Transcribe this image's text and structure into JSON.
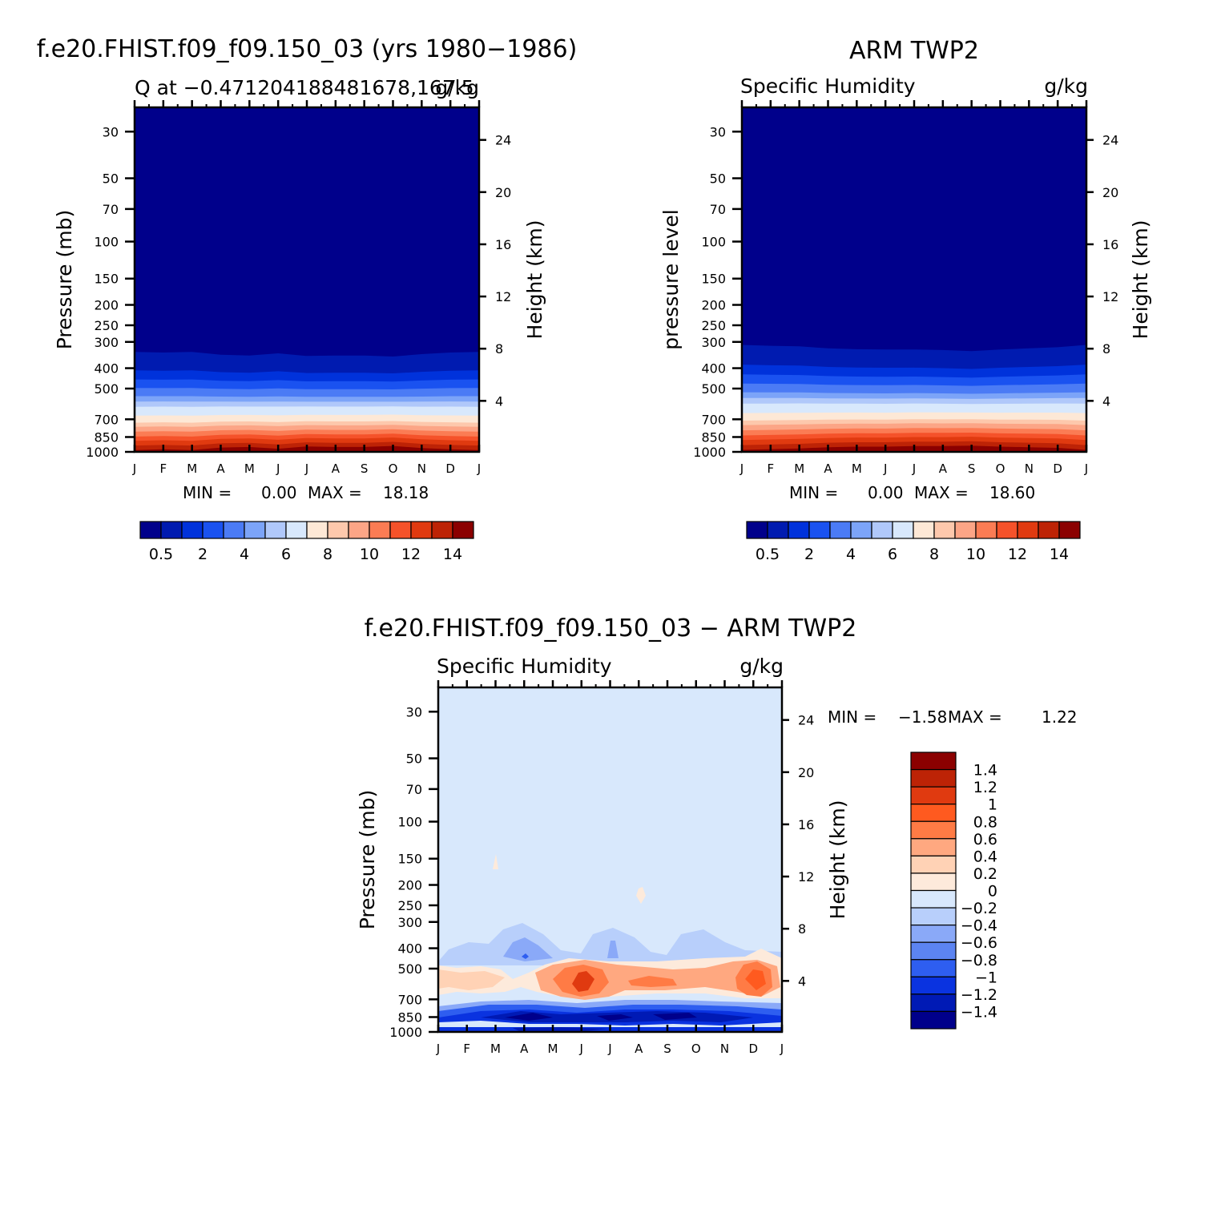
{
  "chart_data": [
    {
      "type": "heatmap",
      "panel": "model",
      "main_title": "f.e20.FHIST.f09_f09.150_03 (yrs 1980−1986)",
      "left_subtitle": "Q at −0.471204188481678,167.5",
      "right_subtitle": "g/kg",
      "ylabel": "Pressure (mb)",
      "right_ylabel": "Height (km)",
      "x_tick_labels": [
        "J",
        "F",
        "M",
        "A",
        "M",
        "J",
        "J",
        "A",
        "S",
        "O",
        "N",
        "D",
        "J"
      ],
      "y_tick_labels": [
        "30",
        "50",
        "70",
        "100",
        "150",
        "200",
        "250",
        "300",
        "400",
        "500",
        "700",
        "850",
        "1000"
      ],
      "y_tick_values": [
        30,
        50,
        70,
        100,
        150,
        200,
        250,
        300,
        400,
        500,
        700,
        850,
        1000
      ],
      "right_tick_labels": [
        "4",
        "8",
        "12",
        "16",
        "20",
        "24"
      ],
      "right_tick_values": [
        4,
        8,
        12,
        16,
        20,
        24
      ],
      "ylim": [
        1000,
        23
      ],
      "y_scale": "log",
      "min_label": "MIN =",
      "min_value": "0.00",
      "max_label": "MAX =",
      "max_value": "18.18",
      "colorbar": {
        "orientation": "horizontal",
        "labels": [
          "0.5",
          "2",
          "4",
          "6",
          "8",
          "10",
          "12",
          "14"
        ]
      },
      "months": [
        "J",
        "F",
        "M",
        "A",
        "M",
        "J",
        "J",
        "A",
        "S",
        "O",
        "N",
        "D",
        "J"
      ],
      "level_top_pressure": [
        335,
        337,
        335,
        345,
        348,
        340,
        350,
        348,
        348,
        352,
        343,
        337,
        335
      ],
      "level_shift_factor": [
        1.0,
        1.01,
        1.0,
        1.04,
        1.05,
        1.02,
        1.06,
        1.05,
        1.05,
        1.07,
        1.03,
        1.01,
        1.0
      ]
    },
    {
      "type": "heatmap",
      "panel": "observations",
      "main_title": "ARM TWP2",
      "left_subtitle": "Specific Humidity",
      "right_subtitle": "g/kg",
      "ylabel": "pressure level",
      "right_ylabel": "Height (km)",
      "x_tick_labels": [
        "J",
        "F",
        "M",
        "A",
        "M",
        "J",
        "J",
        "A",
        "S",
        "O",
        "N",
        "D",
        "J"
      ],
      "y_tick_labels": [
        "30",
        "50",
        "70",
        "100",
        "150",
        "200",
        "250",
        "300",
        "400",
        "500",
        "700",
        "850",
        "1000"
      ],
      "y_tick_values": [
        30,
        50,
        70,
        100,
        150,
        200,
        250,
        300,
        400,
        500,
        700,
        850,
        1000
      ],
      "right_tick_labels": [
        "4",
        "8",
        "12",
        "16",
        "20",
        "24"
      ],
      "right_tick_values": [
        4,
        8,
        12,
        16,
        20,
        24
      ],
      "ylim": [
        1000,
        23
      ],
      "y_scale": "log",
      "min_label": "MIN =",
      "min_value": "0.00",
      "max_label": "MAX =",
      "max_value": "18.60",
      "colorbar": {
        "orientation": "horizontal",
        "labels": [
          "0.5",
          "2",
          "4",
          "6",
          "8",
          "10",
          "12",
          "14"
        ]
      },
      "months": [
        "J",
        "F",
        "M",
        "A",
        "M",
        "J",
        "J",
        "A",
        "S",
        "O",
        "N",
        "D",
        "J"
      ],
      "level_top_pressure": [
        310,
        313,
        315,
        322,
        325,
        326,
        326,
        328,
        332,
        326,
        322,
        318,
        310
      ],
      "level_shift_factor": [
        1.0,
        1.01,
        1.02,
        1.04,
        1.05,
        1.05,
        1.06,
        1.06,
        1.07,
        1.05,
        1.04,
        1.03,
        1.0
      ]
    },
    {
      "type": "heatmap",
      "panel": "difference",
      "main_title": "f.e20.FHIST.f09_f09.150_03 − ARM TWP2",
      "left_subtitle": "Specific Humidity",
      "right_subtitle": "g/kg",
      "ylabel": "Pressure (mb)",
      "right_ylabel": "Height (km)",
      "x_tick_labels": [
        "J",
        "F",
        "M",
        "A",
        "M",
        "J",
        "J",
        "A",
        "S",
        "O",
        "N",
        "D",
        "J"
      ],
      "y_tick_labels": [
        "30",
        "50",
        "70",
        "100",
        "150",
        "200",
        "250",
        "300",
        "400",
        "500",
        "700",
        "850",
        "1000"
      ],
      "y_tick_values": [
        30,
        50,
        70,
        100,
        150,
        200,
        250,
        300,
        400,
        500,
        700,
        850,
        1000
      ],
      "right_tick_labels": [
        "4",
        "8",
        "12",
        "16",
        "20",
        "24"
      ],
      "right_tick_values": [
        4,
        8,
        12,
        16,
        20,
        24
      ],
      "ylim": [
        1000,
        23
      ],
      "y_scale": "log",
      "min_label": "MIN =",
      "min_value": "−1.58",
      "max_label": "MAX =",
      "max_value": "1.22",
      "colorbar": {
        "orientation": "vertical",
        "labels": [
          "1.4",
          "1.2",
          "1",
          "0.8",
          "0.6",
          "0.4",
          "0.2",
          "0",
          "−0.2",
          "−0.4",
          "−0.6",
          "−0.8",
          "−1",
          "−1.2",
          "−1.4"
        ]
      }
    }
  ],
  "colors": {
    "seq_bins": [
      "#00008b",
      "#001bb0",
      "#0032db",
      "#1a52f0",
      "#4b7bf5",
      "#7ca4f8",
      "#b0c8fa",
      "#d8e8fc",
      "#fde8d6",
      "#fdc8ac",
      "#fca586",
      "#fb7c54",
      "#f5522a",
      "#e03a10",
      "#bd2306",
      "#8b0000"
    ],
    "diff_bins": [
      "#8b0000",
      "#bd2306",
      "#e03a10",
      "#ff5a1f",
      "#ff7b45",
      "#ffa880",
      "#ffd2b5",
      "#fdeadb",
      "#d8e8fc",
      "#b8cffb",
      "#8aa9f8",
      "#5c84f2",
      "#2e5ef0",
      "#0a33e0",
      "#001ab5",
      "#00008b"
    ]
  }
}
